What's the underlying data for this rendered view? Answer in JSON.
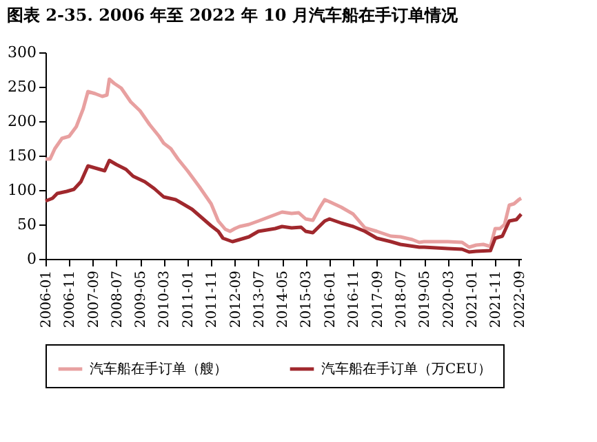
{
  "chart_data": {
    "type": "line",
    "title": "图表 2-35. 2006 年至 2022 年 10 月汽车船在手订单情况",
    "xlim": [
      "2006-01",
      "2022-10"
    ],
    "ylim": [
      0,
      300
    ],
    "yticks": [
      0,
      50,
      100,
      150,
      200,
      250,
      300
    ],
    "xticks": [
      "2006-01",
      "2006-11",
      "2007-09",
      "2008-07",
      "2009-05",
      "2010-03",
      "2011-01",
      "2011-11",
      "2012-09",
      "2013-07",
      "2014-05",
      "2015-03",
      "2016-01",
      "2016-11",
      "2017-09",
      "2018-07",
      "2019-05",
      "2020-03",
      "2021-01",
      "2021-11",
      "2022-09"
    ],
    "grid": false,
    "legend": "bottom",
    "marker": "none",
    "line_style": "solid",
    "series": [
      {
        "name": "汽车船在手订单（艘）",
        "color": "#e8a0a0",
        "x": [
          "2006-01",
          "2006-03",
          "2006-05",
          "2006-08",
          "2006-11",
          "2007-02",
          "2007-05",
          "2007-07",
          "2007-10",
          "2008-01",
          "2008-03",
          "2008-04",
          "2008-06",
          "2008-09",
          "2009-01",
          "2009-05",
          "2009-09",
          "2010-01",
          "2010-03",
          "2010-06",
          "2010-09",
          "2011-01",
          "2011-06",
          "2011-11",
          "2012-02",
          "2012-05",
          "2012-07",
          "2012-09",
          "2012-11",
          "2013-03",
          "2013-07",
          "2014-05",
          "2014-09",
          "2014-12",
          "2015-03",
          "2015-06",
          "2015-09",
          "2015-11",
          "2016-01",
          "2016-06",
          "2016-11",
          "2017-04",
          "2017-09",
          "2018-03",
          "2018-07",
          "2018-12",
          "2019-03",
          "2019-05",
          "2020-03",
          "2020-09",
          "2020-12",
          "2021-03",
          "2021-06",
          "2021-09",
          "2021-11",
          "2022-01",
          "2022-03",
          "2022-05",
          "2022-07",
          "2022-09",
          "2022-10"
        ],
        "values": [
          145,
          145,
          160,
          175,
          178,
          192,
          218,
          243,
          240,
          236,
          238,
          261,
          255,
          248,
          228,
          215,
          195,
          178,
          168,
          160,
          145,
          128,
          105,
          80,
          55,
          43,
          40,
          44,
          47,
          50,
          55,
          68,
          66,
          67,
          58,
          56,
          75,
          86,
          83,
          75,
          65,
          45,
          40,
          33,
          32,
          28,
          24,
          25,
          25,
          24,
          17,
          20,
          21,
          18,
          44,
          44,
          50,
          78,
          80,
          86,
          88
        ]
      },
      {
        "name": "汽车船在手订单（万CEU）",
        "color": "#a0282d",
        "x": [
          "2006-01",
          "2006-04",
          "2006-06",
          "2006-10",
          "2007-01",
          "2007-04",
          "2007-07",
          "2007-10",
          "2008-02",
          "2008-04",
          "2008-07",
          "2008-11",
          "2009-02",
          "2009-07",
          "2009-11",
          "2010-03",
          "2010-08",
          "2010-11",
          "2011-03",
          "2011-06",
          "2011-11",
          "2012-02",
          "2012-04",
          "2012-08",
          "2012-11",
          "2013-03",
          "2013-07",
          "2014-02",
          "2014-05",
          "2014-09",
          "2015-01",
          "2015-03",
          "2015-06",
          "2015-11",
          "2016-01",
          "2016-06",
          "2016-11",
          "2017-04",
          "2017-09",
          "2018-03",
          "2018-07",
          "2019-03",
          "2019-05",
          "2020-03",
          "2020-09",
          "2020-12",
          "2021-03",
          "2021-09",
          "2021-11",
          "2022-02",
          "2022-05",
          "2022-08",
          "2022-10"
        ],
        "values": [
          84,
          88,
          95,
          98,
          101,
          112,
          135,
          132,
          128,
          143,
          137,
          130,
          120,
          112,
          102,
          90,
          86,
          80,
          72,
          63,
          48,
          40,
          30,
          25,
          28,
          32,
          40,
          44,
          47,
          45,
          46,
          40,
          38,
          55,
          58,
          52,
          47,
          40,
          30,
          25,
          21,
          17,
          17,
          15,
          14,
          10,
          11,
          12,
          30,
          33,
          55,
          57,
          65
        ]
      }
    ]
  }
}
